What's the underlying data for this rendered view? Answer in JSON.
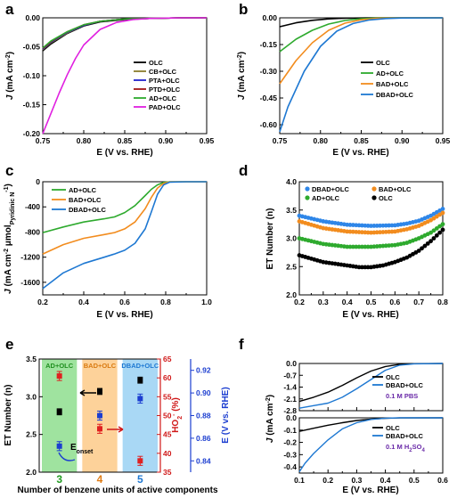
{
  "chart_data": [
    {
      "id": "a",
      "type": "line",
      "title": "",
      "xlabel": "E (V vs. RHE)",
      "ylabel": "J (mA cm-2)",
      "xlim": [
        0.75,
        0.95
      ],
      "ylim": [
        -0.2,
        0.0
      ],
      "xticks": [
        "0.75",
        "0.80",
        "0.85",
        "0.90",
        "0.95"
      ],
      "yticks": [
        "-0.20",
        "-0.15",
        "-0.10",
        "-0.05",
        "0.00"
      ],
      "legend": "bottom-right",
      "series": [
        {
          "name": "OLC",
          "color": "#000000",
          "x": [
            0.75,
            0.76,
            0.78,
            0.8,
            0.82,
            0.85,
            0.88,
            0.92,
            0.95
          ],
          "y": [
            -0.057,
            -0.045,
            -0.027,
            -0.014,
            -0.007,
            -0.003,
            -0.001,
            0.0,
            0.0
          ]
        },
        {
          "name": "CB+OLC",
          "color": "#8b7d2e",
          "x": [
            0.75,
            0.76,
            0.78,
            0.8,
            0.82,
            0.85,
            0.88,
            0.92,
            0.95
          ],
          "y": [
            -0.055,
            -0.043,
            -0.026,
            -0.013,
            -0.006,
            -0.002,
            -0.001,
            0.0,
            0.0
          ]
        },
        {
          "name": "PTA+OLC",
          "color": "#2222cc",
          "x": [
            0.75,
            0.76,
            0.78,
            0.8,
            0.82,
            0.85,
            0.88,
            0.92,
            0.95
          ],
          "y": [
            -0.054,
            -0.042,
            -0.025,
            -0.013,
            -0.006,
            -0.002,
            -0.001,
            0.0,
            0.0
          ]
        },
        {
          "name": "PTD+OLC",
          "color": "#a01515",
          "x": [
            0.75,
            0.76,
            0.78,
            0.8,
            0.82,
            0.85,
            0.88,
            0.92,
            0.95
          ],
          "y": [
            -0.053,
            -0.041,
            -0.024,
            -0.012,
            -0.006,
            -0.002,
            -0.001,
            0.0,
            0.0
          ]
        },
        {
          "name": "AD+OLC",
          "color": "#2eaa2e",
          "x": [
            0.75,
            0.76,
            0.78,
            0.8,
            0.82,
            0.85,
            0.88,
            0.92,
            0.95
          ],
          "y": [
            -0.052,
            -0.04,
            -0.024,
            -0.012,
            -0.006,
            -0.002,
            -0.001,
            0.0,
            0.0
          ]
        },
        {
          "name": "PAD+OLC",
          "color": "#e020e0",
          "x": [
            0.75,
            0.76,
            0.77,
            0.78,
            0.79,
            0.8,
            0.82,
            0.84,
            0.86,
            0.88,
            0.92,
            0.95
          ],
          "y": [
            -0.2,
            -0.165,
            -0.13,
            -0.098,
            -0.07,
            -0.047,
            -0.02,
            -0.008,
            -0.003,
            -0.001,
            0.0,
            0.0
          ]
        }
      ]
    },
    {
      "id": "b",
      "type": "line",
      "title": "",
      "xlabel": "E (V vs. RHE)",
      "ylabel": "J (mA cm-2)",
      "xlim": [
        0.75,
        0.95
      ],
      "ylim": [
        -0.65,
        0.0
      ],
      "xticks": [
        "0.75",
        "0.80",
        "0.85",
        "0.90",
        "0.95"
      ],
      "yticks": [
        "-0.60",
        "-0.45",
        "-0.30",
        "-0.15",
        "0.00"
      ],
      "legend": "right",
      "series": [
        {
          "name": "OLC",
          "color": "#000000",
          "x": [
            0.75,
            0.77,
            0.79,
            0.81,
            0.83,
            0.86,
            0.9,
            0.95
          ],
          "y": [
            -0.05,
            -0.028,
            -0.014,
            -0.006,
            -0.002,
            0.0,
            0.0,
            0.0
          ]
        },
        {
          "name": "AD+OLC",
          "color": "#2eaa2e",
          "x": [
            0.75,
            0.77,
            0.79,
            0.81,
            0.83,
            0.85,
            0.87,
            0.9,
            0.95
          ],
          "y": [
            -0.19,
            -0.12,
            -0.07,
            -0.035,
            -0.015,
            -0.005,
            -0.001,
            0.0,
            0.0
          ]
        },
        {
          "name": "BAD+OLC",
          "color": "#f28c1e",
          "x": [
            0.75,
            0.77,
            0.79,
            0.81,
            0.83,
            0.85,
            0.87,
            0.9,
            0.95
          ],
          "y": [
            -0.37,
            -0.24,
            -0.14,
            -0.07,
            -0.03,
            -0.011,
            -0.003,
            0.0,
            0.0
          ]
        },
        {
          "name": "DBAD+OLC",
          "color": "#1e78d2",
          "x": [
            0.75,
            0.76,
            0.78,
            0.8,
            0.82,
            0.84,
            0.86,
            0.88,
            0.9,
            0.95
          ],
          "y": [
            -0.64,
            -0.5,
            -0.3,
            -0.16,
            -0.075,
            -0.032,
            -0.012,
            -0.004,
            -0.001,
            0.0
          ]
        }
      ]
    },
    {
      "id": "c",
      "type": "line",
      "title": "",
      "xlabel": "E (V vs. RHE)",
      "ylabel": "J (mA cm-2 μmol Pyridinic N -1)",
      "xlim": [
        0.2,
        1.0
      ],
      "ylim": [
        -1800,
        0
      ],
      "xticks": [
        "0.2",
        "0.4",
        "0.6",
        "0.8",
        "1.0"
      ],
      "yticks": [
        "-1600",
        "-1200",
        "-800",
        "-400",
        "0"
      ],
      "legend": "top-left",
      "series": [
        {
          "name": "AD+OLC",
          "color": "#2eaa2e",
          "x": [
            0.2,
            0.3,
            0.4,
            0.5,
            0.55,
            0.6,
            0.65,
            0.7,
            0.73,
            0.76,
            0.79,
            0.82,
            0.9,
            1.0
          ],
          "y": [
            -810,
            -720,
            -640,
            -590,
            -560,
            -490,
            -380,
            -220,
            -120,
            -50,
            -12,
            0,
            0,
            0
          ]
        },
        {
          "name": "BAD+OLC",
          "color": "#f28c1e",
          "x": [
            0.2,
            0.3,
            0.4,
            0.5,
            0.55,
            0.6,
            0.65,
            0.7,
            0.73,
            0.76,
            0.79,
            0.82,
            0.9,
            1.0
          ],
          "y": [
            -1150,
            -1000,
            -900,
            -840,
            -810,
            -750,
            -640,
            -430,
            -250,
            -100,
            -25,
            -2,
            0,
            0
          ]
        },
        {
          "name": "DBAD+OLC",
          "color": "#1e78d2",
          "x": [
            0.2,
            0.3,
            0.4,
            0.5,
            0.55,
            0.6,
            0.65,
            0.7,
            0.73,
            0.76,
            0.79,
            0.82,
            0.9,
            1.0
          ],
          "y": [
            -1700,
            -1450,
            -1300,
            -1200,
            -1150,
            -1090,
            -980,
            -750,
            -480,
            -200,
            -50,
            -5,
            0,
            0
          ]
        }
      ]
    },
    {
      "id": "d",
      "type": "scatter",
      "title": "",
      "xlabel": "E (V vs. RHE)",
      "ylabel": "ET Number (n)",
      "xlim": [
        0.2,
        0.8
      ],
      "ylim": [
        2.0,
        4.0
      ],
      "xticks": [
        "0.2",
        "0.3",
        "0.4",
        "0.5",
        "0.6",
        "0.7",
        "0.8"
      ],
      "yticks": [
        "2.0",
        "2.5",
        "3.0",
        "3.5",
        "4.0"
      ],
      "legend": "top",
      "series": [
        {
          "name": "DBAD+OLC",
          "color": "#2e86e8",
          "x": [
            0.2,
            0.3,
            0.4,
            0.5,
            0.6,
            0.65,
            0.7,
            0.75,
            0.8
          ],
          "y": [
            3.4,
            3.3,
            3.24,
            3.22,
            3.23,
            3.26,
            3.31,
            3.4,
            3.52
          ]
        },
        {
          "name": "BAD+OLC",
          "color": "#f28c1e",
          "x": [
            0.2,
            0.3,
            0.4,
            0.5,
            0.6,
            0.65,
            0.7,
            0.75,
            0.8
          ],
          "y": [
            3.3,
            3.18,
            3.12,
            3.1,
            3.12,
            3.16,
            3.22,
            3.32,
            3.45
          ]
        },
        {
          "name": "AD+OLC",
          "color": "#2eaa2e",
          "x": [
            0.2,
            0.3,
            0.4,
            0.5,
            0.6,
            0.65,
            0.7,
            0.75,
            0.8
          ],
          "y": [
            3.0,
            2.9,
            2.85,
            2.85,
            2.88,
            2.92,
            3.0,
            3.1,
            3.25
          ]
        },
        {
          "name": "OLC",
          "color": "#000000",
          "x": [
            0.2,
            0.3,
            0.4,
            0.45,
            0.5,
            0.55,
            0.6,
            0.65,
            0.7,
            0.75,
            0.8
          ],
          "y": [
            2.7,
            2.58,
            2.52,
            2.49,
            2.49,
            2.52,
            2.58,
            2.66,
            2.78,
            2.95,
            3.15
          ]
        }
      ]
    },
    {
      "id": "e",
      "type": "scatter",
      "title": "",
      "xlabel": "Number of benzene units of active components",
      "ylabel": "ET Number (n)",
      "y2label": "HO2- (%)",
      "y3label": "E (V vs. RHE)",
      "categories": [
        "3",
        "4",
        "5"
      ],
      "band_labels": [
        "AD+OLC",
        "BAD+OLC",
        "DBAD+OLC"
      ],
      "band_colors": [
        "#9fe39f",
        "#fdd29a",
        "#a9d8f5"
      ],
      "ylim": [
        2.0,
        3.5
      ],
      "y2lim": [
        35,
        65
      ],
      "y3lim": [
        0.83,
        0.93
      ],
      "yticks": [
        "2.0",
        "2.5",
        "3.0",
        "3.5"
      ],
      "y2ticks": [
        "35",
        "40",
        "45",
        "50",
        "55",
        "60",
        "65"
      ],
      "y3ticks": [
        "0.84",
        "0.86",
        "0.88",
        "0.90",
        "0.92"
      ],
      "annotation": "E onset",
      "series": [
        {
          "name": "ET Number",
          "color": "#000000",
          "axis": "y",
          "values": [
            2.8,
            3.07,
            3.22
          ]
        },
        {
          "name": "HO2-",
          "color": "#e02020",
          "axis": "y2",
          "values": [
            60.5,
            46.5,
            38.0
          ]
        },
        {
          "name": "Eonset",
          "color": "#1c3ed0",
          "axis": "y3",
          "values": [
            0.853,
            0.88,
            0.895
          ]
        }
      ]
    },
    {
      "id": "f",
      "type": "line",
      "title": "",
      "xlabel": "E (V vs. RHE)",
      "ylabel": "J (mA cm-2)",
      "xlim": [
        0.1,
        0.6
      ],
      "xticks": [
        "0.1",
        "0.2",
        "0.3",
        "0.4",
        "0.5",
        "0.6"
      ],
      "panels": [
        {
          "label": "0.1 M PBS",
          "ylim": [
            -2.8,
            0.0
          ],
          "yticks": [
            "-2.8",
            "-2.1",
            "-1.4",
            "-0.7",
            "0.0"
          ],
          "series": [
            {
              "name": "OLC",
              "color": "#000000",
              "x": [
                0.1,
                0.15,
                0.2,
                0.25,
                0.3,
                0.35,
                0.4,
                0.45,
                0.5,
                0.6
              ],
              "y": [
                -2.25,
                -2.0,
                -1.7,
                -1.3,
                -0.85,
                -0.45,
                -0.18,
                -0.05,
                -0.01,
                0.0
              ]
            },
            {
              "name": "DBAD+OLC",
              "color": "#1e78d2",
              "x": [
                0.1,
                0.15,
                0.2,
                0.25,
                0.3,
                0.35,
                0.4,
                0.45,
                0.5,
                0.6
              ],
              "y": [
                -2.65,
                -2.5,
                -2.35,
                -2.0,
                -1.5,
                -0.95,
                -0.4,
                -0.1,
                -0.02,
                0.0
              ]
            }
          ]
        },
        {
          "label": "0.1 M H2SO4",
          "ylim": [
            -0.45,
            0.0
          ],
          "yticks": [
            "-0.4",
            "-0.3",
            "-0.2",
            "-0.1",
            "0.0"
          ],
          "series": [
            {
              "name": "OLC",
              "color": "#000000",
              "x": [
                0.1,
                0.15,
                0.2,
                0.25,
                0.3,
                0.35,
                0.4,
                0.45,
                0.6
              ],
              "y": [
                -0.11,
                -0.085,
                -0.06,
                -0.04,
                -0.022,
                -0.01,
                -0.004,
                -0.001,
                0.0
              ]
            },
            {
              "name": "DBAD+OLC",
              "color": "#1e78d2",
              "x": [
                0.1,
                0.12,
                0.15,
                0.2,
                0.25,
                0.3,
                0.35,
                0.4,
                0.45,
                0.6
              ],
              "y": [
                -0.44,
                -0.37,
                -0.29,
                -0.18,
                -0.09,
                -0.04,
                -0.013,
                -0.003,
                0.0,
                0.0
              ]
            }
          ]
        }
      ]
    }
  ]
}
